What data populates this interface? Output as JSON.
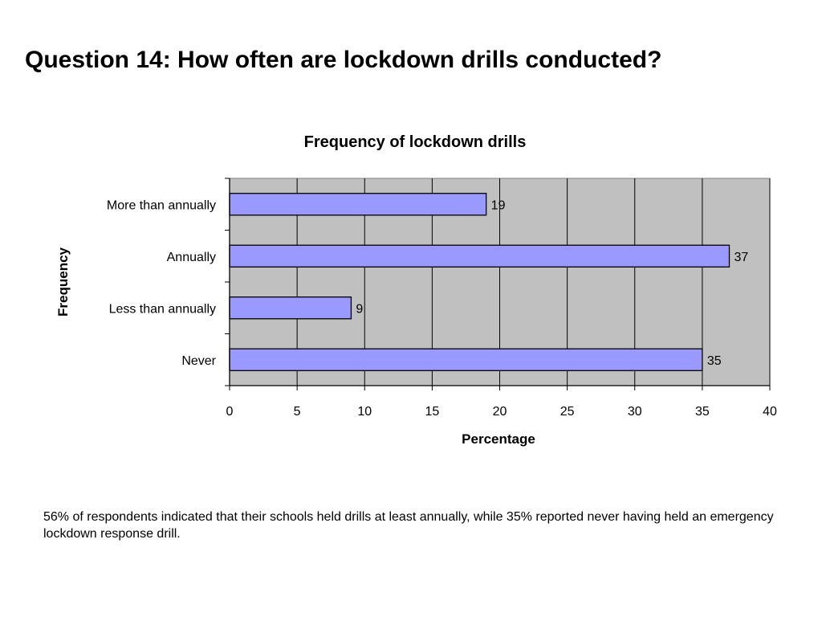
{
  "slide": {
    "title": "Question 14: How often are lockdown drills conducted?",
    "caption": "56% of respondents indicated that their schools held drills at least annually, while 35% reported never having held an emergency lockdown response drill."
  },
  "chart_data": {
    "type": "bar",
    "orientation": "horizontal",
    "title": "Frequency of lockdown drills",
    "xlabel": "Percentage",
    "ylabel": "Frequency",
    "categories": [
      "More than annually",
      "Annually",
      "Less than annually",
      "Never"
    ],
    "values": [
      19,
      37,
      9,
      35
    ],
    "data_labels": [
      "19",
      "37",
      "9",
      "35"
    ],
    "xlim": [
      0,
      40
    ],
    "xticks": [
      0,
      5,
      10,
      15,
      20,
      25,
      30,
      35,
      40
    ],
    "grid": true,
    "legend": "none",
    "colors": {
      "bar_fill": "#9999ff",
      "plot_background": "#c0c0c0",
      "gridline": "#000000"
    }
  }
}
